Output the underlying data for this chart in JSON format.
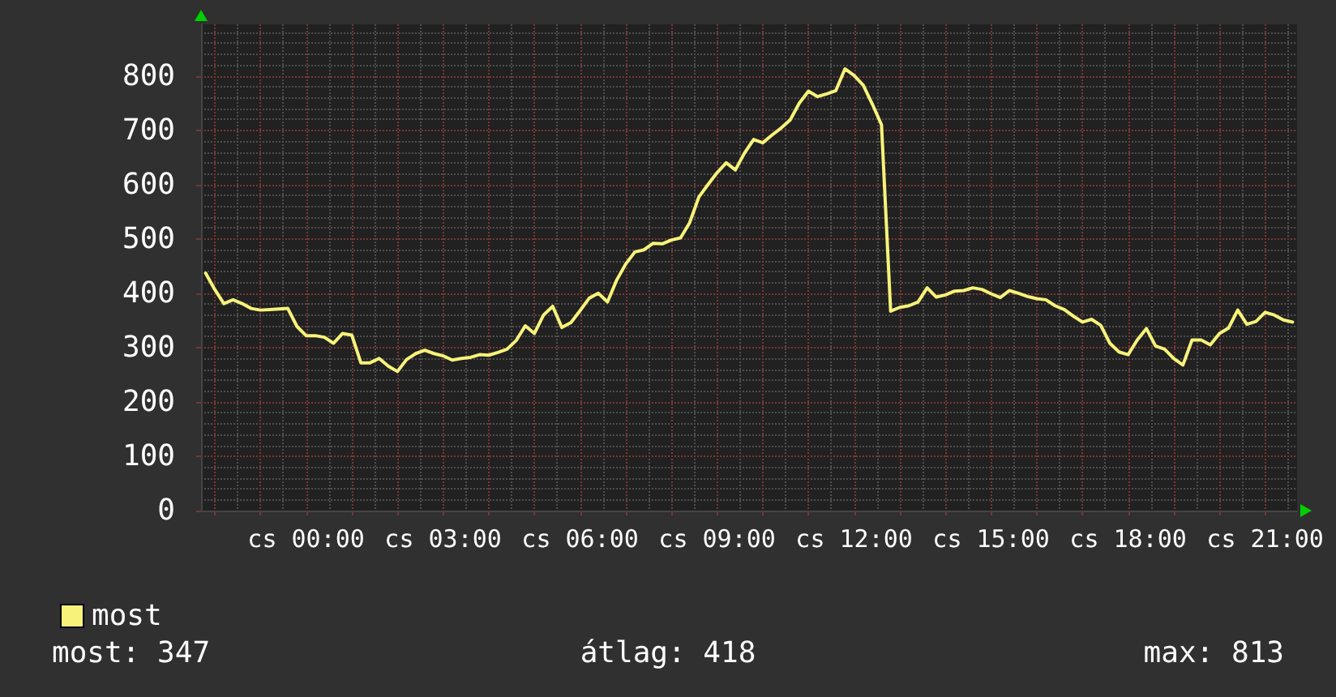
{
  "chart_data": {
    "type": "line",
    "categories": [
      null,
      null,
      null,
      null,
      null,
      null,
      null,
      null,
      null,
      null,
      null,
      "cs 00:00",
      null,
      null,
      null,
      null,
      null,
      null,
      null,
      null,
      null,
      null,
      null,
      null,
      null,
      null,
      "cs 03:00",
      null,
      null,
      null,
      null,
      null,
      null,
      null,
      null,
      null,
      null,
      null,
      null,
      null,
      null,
      "cs 06:00",
      null,
      null,
      null,
      null,
      null,
      null,
      null,
      null,
      null,
      null,
      null,
      null,
      null,
      null,
      "cs 09:00",
      null,
      null,
      null,
      null,
      null,
      null,
      null,
      null,
      null,
      null,
      null,
      null,
      null,
      null,
      "cs 12:00",
      null,
      null,
      null,
      null,
      null,
      null,
      null,
      null,
      null,
      null,
      null,
      null,
      null,
      null,
      "cs 15:00",
      null,
      null,
      null,
      null,
      null,
      null,
      null,
      null,
      null,
      null,
      null,
      null,
      null,
      null,
      "cs 18:00",
      null,
      null,
      null,
      null,
      null,
      null,
      null,
      null,
      null,
      null,
      null,
      null,
      null,
      null,
      "cs 21:00",
      null,
      null,
      null
    ],
    "series": [
      {
        "name": "most",
        "color": "#f7f37a",
        "values": [
          437,
          407,
          381,
          388,
          381,
          372,
          369,
          370,
          371,
          372,
          339,
          322,
          322,
          319,
          308,
          326,
          323,
          272,
          272,
          280,
          266,
          256,
          278,
          289,
          295,
          289,
          285,
          277,
          280,
          282,
          287,
          286,
          291,
          297,
          313,
          340,
          326,
          360,
          376,
          337,
          346,
          368,
          391,
          400,
          384,
          424,
          454,
          476,
          480,
          492,
          491,
          498,
          502,
          530,
          577,
          600,
          622,
          640,
          627,
          658,
          683,
          677,
          691,
          704,
          719,
          750,
          772,
          762,
          767,
          773,
          813,
          801,
          783,
          748,
          710,
          367,
          374,
          377,
          384,
          410,
          393,
          397,
          404,
          405,
          410,
          407,
          399,
          392,
          405,
          400,
          394,
          390,
          388,
          377,
          370,
          358,
          347,
          352,
          341,
          308,
          292,
          287,
          314,
          335,
          303,
          297,
          280,
          268,
          314,
          314,
          305,
          326,
          336,
          369,
          343,
          348,
          365,
          360,
          351,
          347
        ]
      }
    ],
    "ylim": [
      0,
      895
    ],
    "yticks": [
      0,
      100,
      200,
      300,
      400,
      500,
      600,
      700,
      800
    ],
    "grid": true,
    "legend": "bottom left",
    "marker": "none",
    "line_style": "solid",
    "annotations": [
      "most: 347",
      "átlag: 418",
      "max: 813"
    ]
  }
}
